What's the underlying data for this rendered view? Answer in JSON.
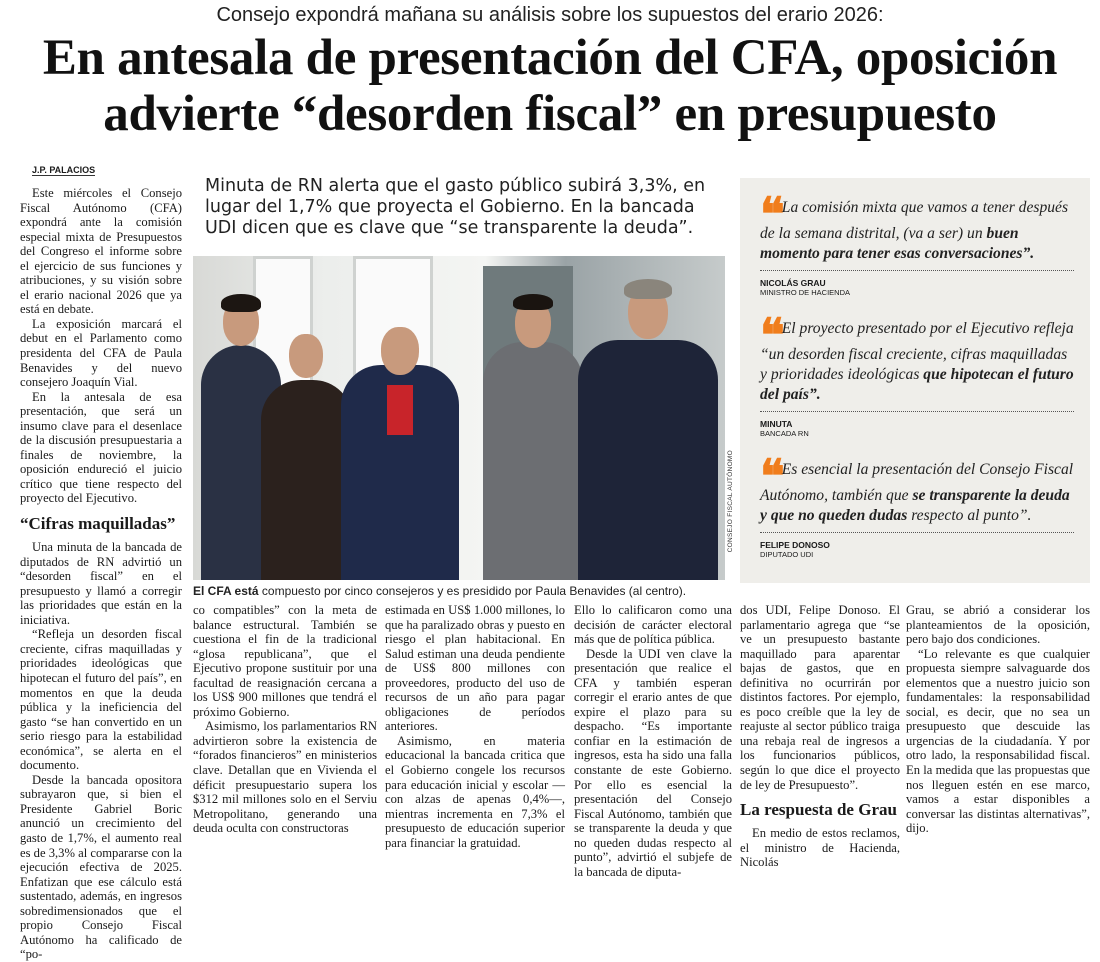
{
  "article": {
    "kicker": "Consejo expondrá mañana su análisis sobre los supuestos del erario 2026:",
    "headline_line1": "En antesala de presentación del CFA, oposición",
    "headline_line2": "advierte “desorden fiscal” en presupuesto",
    "byline": "J.P. PALACIOS",
    "standfirst": "Minuta de RN alerta que el gasto público subirá 3,3%, en lugar del 1,7% que proyecta el Gobierno. En la bancada UDI dicen que es clave que “se transparente la deuda”.",
    "photo_credit": "CONSEJO FISCAL AUTÓNOMO",
    "caption_bold": "El CFA está",
    "caption_rest": " compuesto por cinco consejeros y es presidido por Paula Benavides (al centro).",
    "subheads": [
      "“Cifras maquilladas”",
      "La respuesta de Grau"
    ],
    "col1": [
      "Este miércoles el Consejo Fiscal Autónomo (CFA) expondrá ante la comisión especial mixta de Presupuestos del Congreso el informe sobre el ejercicio de sus funciones y atribuciones, y su visión sobre el erario nacional 2026 que ya está en debate.",
      "La exposición marcará el debut en el Parlamento como presidenta del CFA de Paula Benavides y del nuevo consejero Joaquín Vial.",
      "En la antesala de esa presentación, que será un insumo clave para el desenlace de la discusión presupuestaria a finales de noviembre, la oposición endureció el juicio crítico que tiene respecto del proyecto del Ejecutivo.",
      "Una minuta de la bancada de diputados de RN advirtió un “desorden fiscal” en el presupuesto y llamó a corregir las prioridades que están en la iniciativa.",
      "“Refleja un desorden fiscal creciente, cifras maquilladas y prioridades ideológicas que hipotecan el futuro del país”, en momentos en que la deuda pública y la ineficiencia del gasto “se han convertido en un serio riesgo para la estabilidad económica”, se alerta en el documento.",
      "Desde la bancada opositora subrayaron que, si bien el Presidente Gabriel Boric anunció un crecimiento del gasto de 1,7%, el aumento real es de 3,3% al compararse con la ejecución efectiva de 2025. Enfatizan que ese cálculo está sustentado, además, en ingresos sobredimensionados que el propio Consejo Fiscal Autónomo ha calificado de “po-"
    ],
    "col2": [
      "co compatibles” con la meta de balance estructural. También se cuestiona el fin de la tradicional “glosa republicana”, que el Ejecutivo propone sustituir por una facultad de reasignación cercana a los US$ 900 millones que tendrá el próximo Gobierno.",
      "Asimismo, los parlamentarios RN advirtieron sobre la existencia de “forados financieros” en ministerios clave. Detallan que en Vivienda el déficit presupuestario supera los $312 mil millones solo en el Serviu Metropolitano, generando una deuda oculta con constructoras"
    ],
    "col3": [
      "estimada en US$ 1.000 millones, lo que ha paralizado obras y puesto en riesgo el plan habitacional. En Salud estiman una deuda pendiente de US$ 800 millones con proveedores, producto del uso de recursos de un año para pagar obligaciones de períodos anteriores.",
      "Asimismo, en materia educacional la bancada critica que el Gobierno congele los recursos para educación inicial y escolar —con alzas de apenas 0,4%—, mientras incrementa en 7,3% el presupuesto de educación superior para financiar la gratuidad."
    ],
    "col4": [
      "Ello lo calificaron como una decisión de carácter electoral más que de política pública.",
      "Desde la UDI ven clave la presentación que realice el CFA y también esperan corregir el erario antes de que expire el plazo para su despacho. “Es importante confiar en la estimación de ingresos, esta ha sido una falla constante de este Gobierno. Por ello es esencial la presentación del Consejo Fiscal Autónomo, también que se transparente la deuda y que no queden dudas respecto al punto”, advirtió el subjefe de la bancada de diputa-"
    ],
    "col5": [
      "dos UDI, Felipe Donoso. El parlamentario agrega que “se ve un presupuesto bastante maquillado para aparentar bajas de gastos, que en definitiva no ocurrirán por distintos factores. Por ejemplo, es poco creíble que la ley de reajuste al sector público traiga una rebaja real de ingresos a los funcionarios públicos, según lo que dice el proyecto de ley de Presupuesto”.",
      "En medio de estos reclamos, el ministro de Hacienda, Nicolás"
    ],
    "col6": [
      "Grau, se abrió a considerar los planteamientos de la oposición, pero bajo dos condiciones.",
      "“Lo relevante es que cualquier propuesta siempre salvaguarde dos elementos que a nuestro juicio son fundamentales: la responsabilidad social, es decir, que no sea un presupuesto que descuide las urgencias de la ciudadanía. Y por otro lado, la responsabilidad fiscal. En la medida que las propuestas que nos lleguen estén en ese marco, vamos a estar disponibles a conversar las distintas alternativas”, dijo."
    ]
  },
  "sidebar": {
    "quote_icon": "opening-quote-mark",
    "accent_color": "#f07d1c",
    "background_color": "#efeeea",
    "quotes": [
      {
        "a": "La comisión mixta que vamos a tener después de la semana distrital, (va a ser) un ",
        "b": "buen momento para tener esas conversaciones”.",
        "c": "",
        "name": "NICOLÁS GRAU",
        "role": "MINISTRO DE HACIENDA"
      },
      {
        "a": "El proyecto presentado por el Ejecutivo refleja “un desorden fiscal creciente, cifras maquilladas y prioridades ideológicas ",
        "b": "que hipotecan el futuro del país”.",
        "c": "",
        "name": "MINUTA",
        "role": "BANCADA RN"
      },
      {
        "a": "Es esencial la presentación del Consejo Fiscal Autónomo, también que ",
        "b": "se transparente la deuda y que no queden dudas",
        "c": " respecto al punto”.",
        "name": "FELIPE DONOSO",
        "role": "DIPUTADO UDI"
      }
    ]
  }
}
